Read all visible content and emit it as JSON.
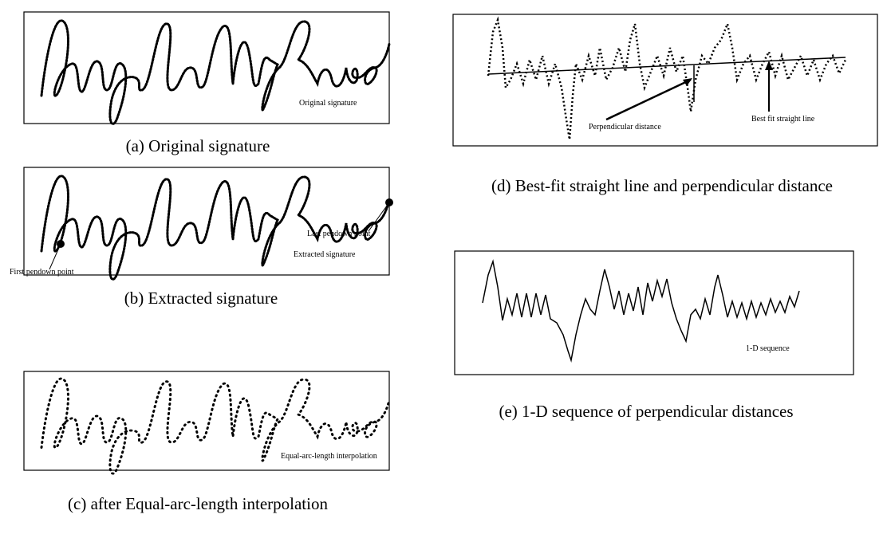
{
  "panels": [
    {
      "caption": "(a) Original signature",
      "label": "Original signature"
    },
    {
      "caption": "(b) Extracted signature",
      "label": "Extracted signature",
      "first_point": "First pendown point",
      "last_point": "Last pendown point"
    },
    {
      "caption": "(c) after Equal-arc-length interpolation",
      "label": "Equal-arc-length interpolation"
    },
    {
      "caption": "(d) Best-fit straight line and perpendicular distance",
      "distance_label": "Perpendicular distance",
      "line_label": "Best fit straight line"
    },
    {
      "caption": "(e) 1-D sequence of perpendicular distances",
      "label": "1-D sequence"
    }
  ]
}
